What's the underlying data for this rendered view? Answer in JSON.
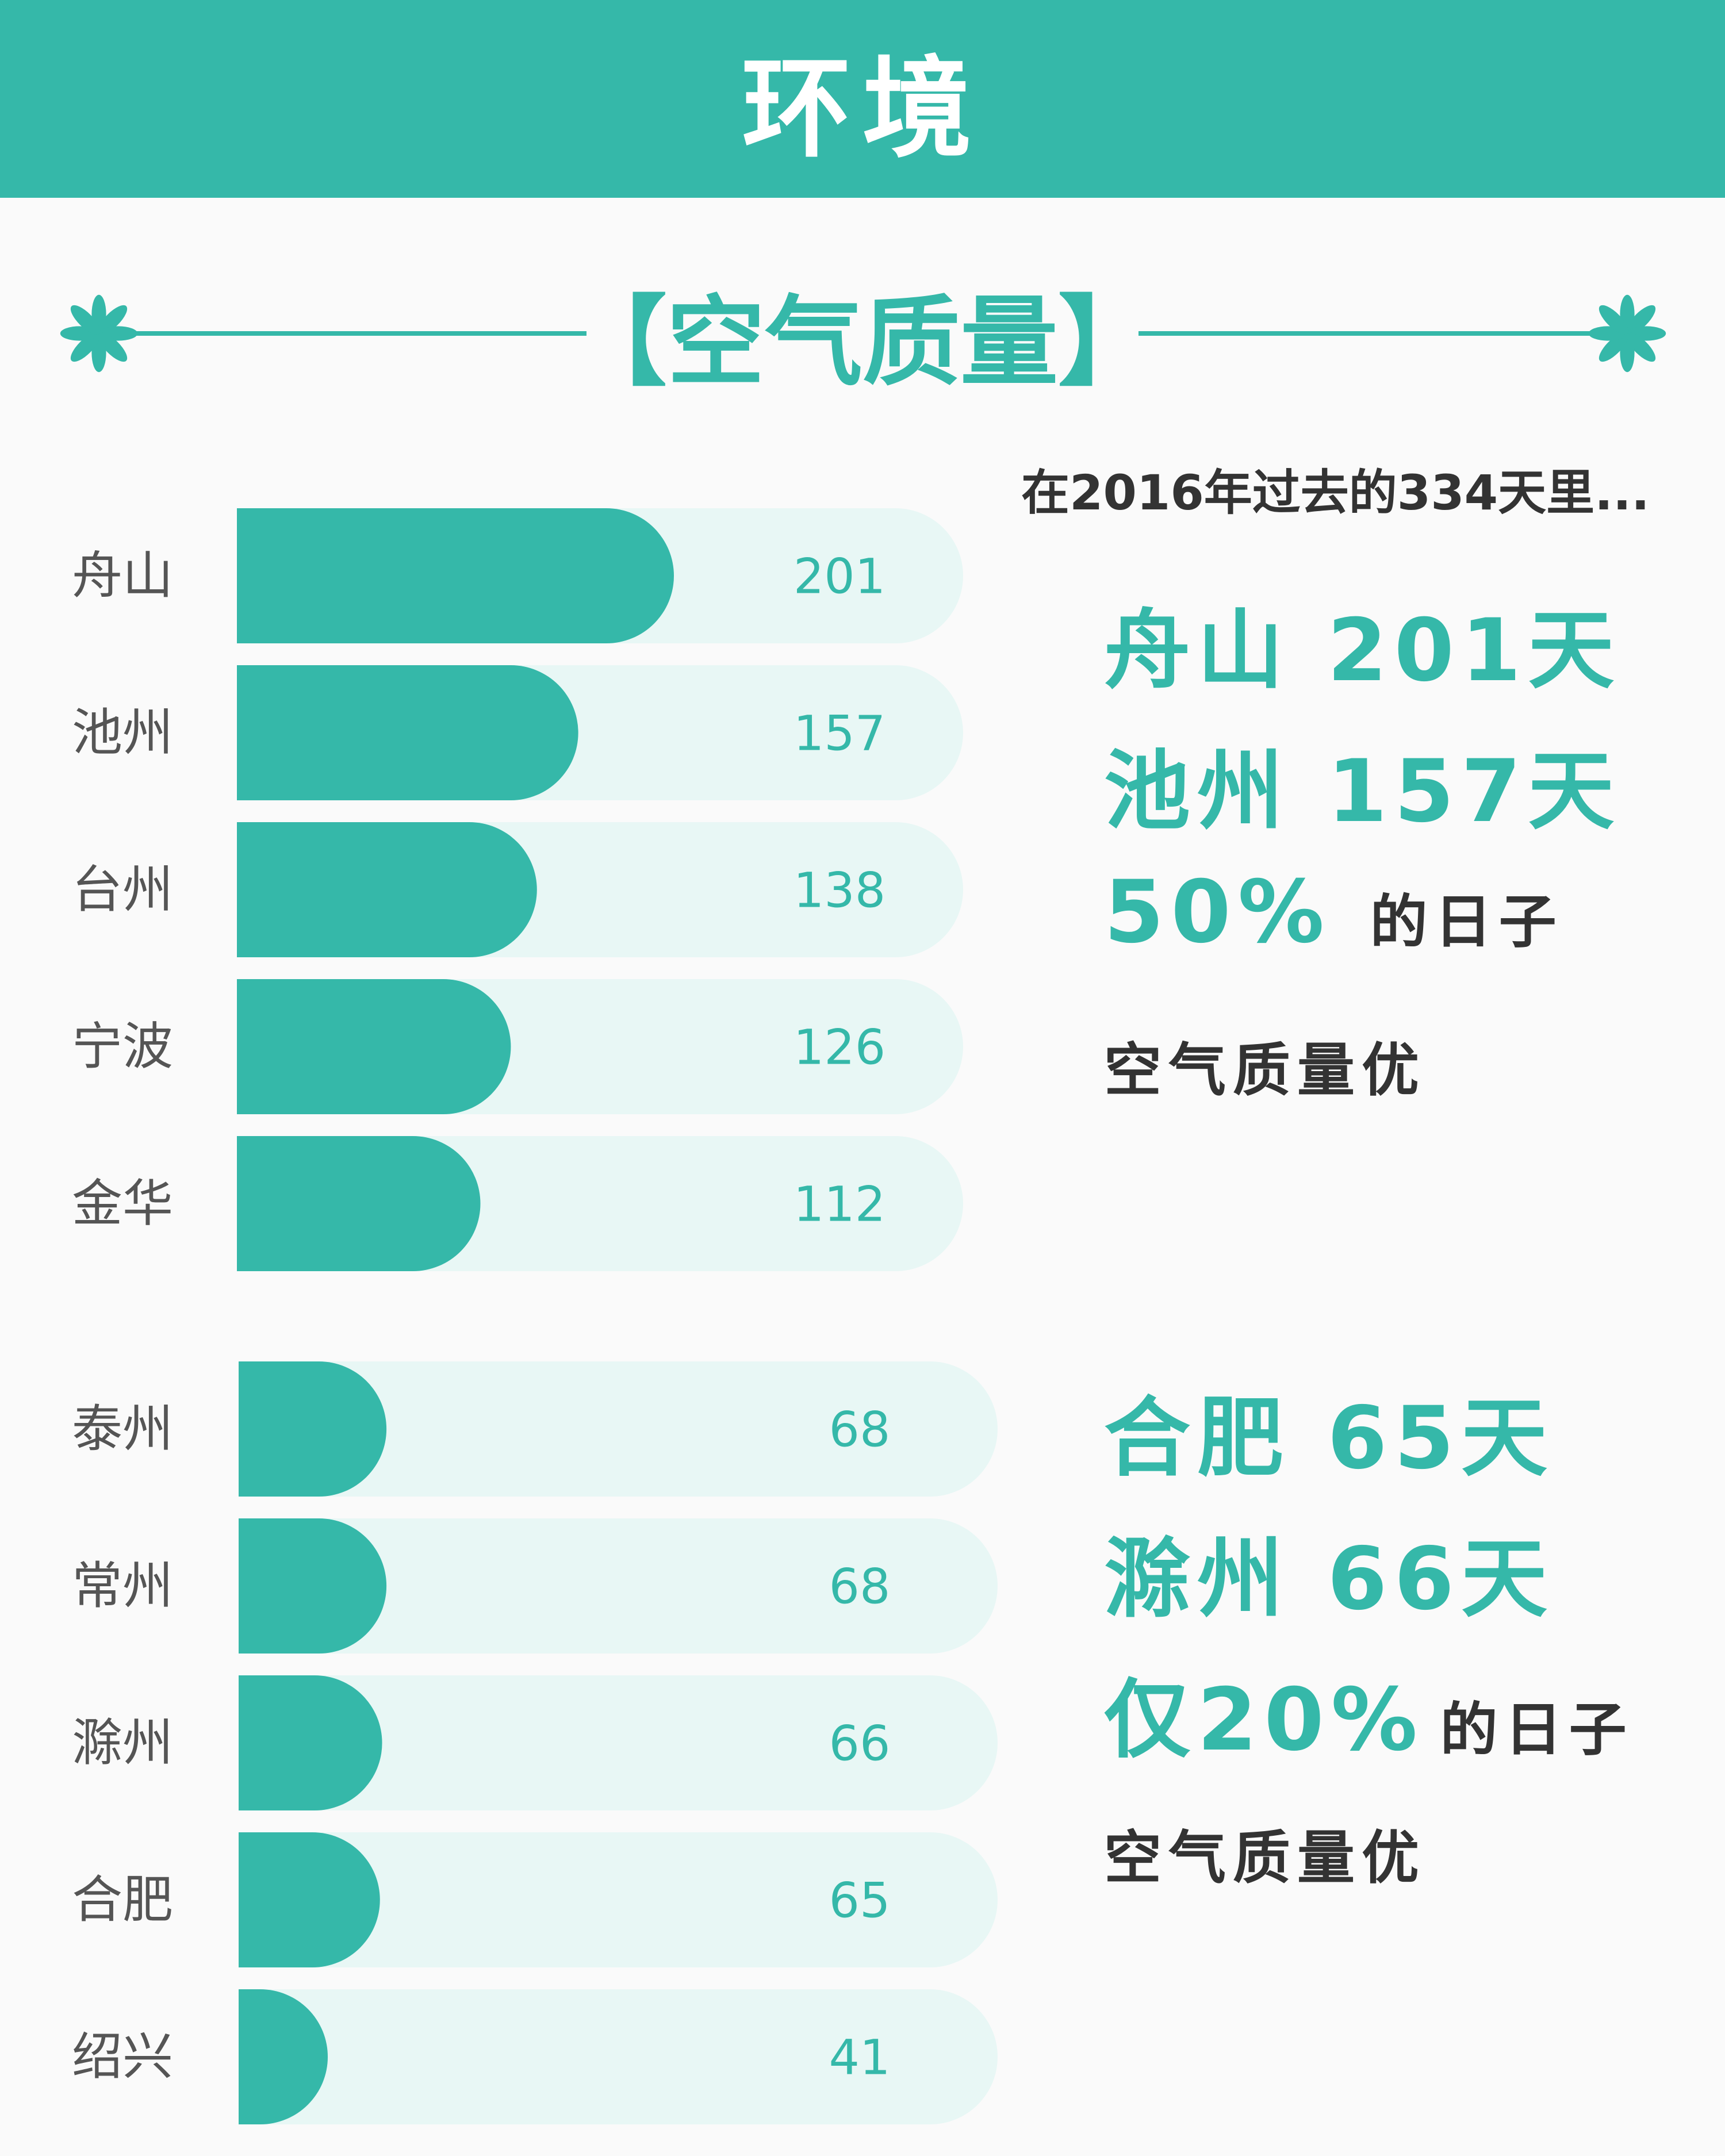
{
  "header": {
    "title": "环境"
  },
  "section": {
    "title": "【空气质量】",
    "decor_icon": "snowflake-flower-icon"
  },
  "colors": {
    "accent": "#35b8a9",
    "bar_track": "#e8f7f5",
    "text_dark": "#333333",
    "text_gray": "#555555",
    "background": "#fafafa"
  },
  "chart_data": [
    {
      "type": "bar",
      "orientation": "horizontal",
      "categories": [
        "舟山",
        "池州",
        "台州",
        "宁波",
        "金华"
      ],
      "values": [
        201,
        157,
        138,
        126,
        112
      ],
      "xlim": [
        0,
        334
      ]
    },
    {
      "type": "bar",
      "orientation": "horizontal",
      "categories": [
        "泰州",
        "常州",
        "滁州",
        "合肥",
        "绍兴"
      ],
      "values": [
        68,
        68,
        66,
        65,
        41
      ],
      "xlim": [
        0,
        334
      ]
    }
  ],
  "stats": {
    "intro": "在2016年过去的334天里...",
    "top": {
      "line1": "舟山 201天",
      "line2": "池州 157天",
      "pct": "50%",
      "pct_suffix": "的日子",
      "tail": "空气质量优"
    },
    "bottom": {
      "line1": "合肥 65天",
      "line2": "滁州 66天",
      "pct": "仅20%",
      "pct_suffix": "的日子",
      "tail": "空气质量优"
    }
  }
}
